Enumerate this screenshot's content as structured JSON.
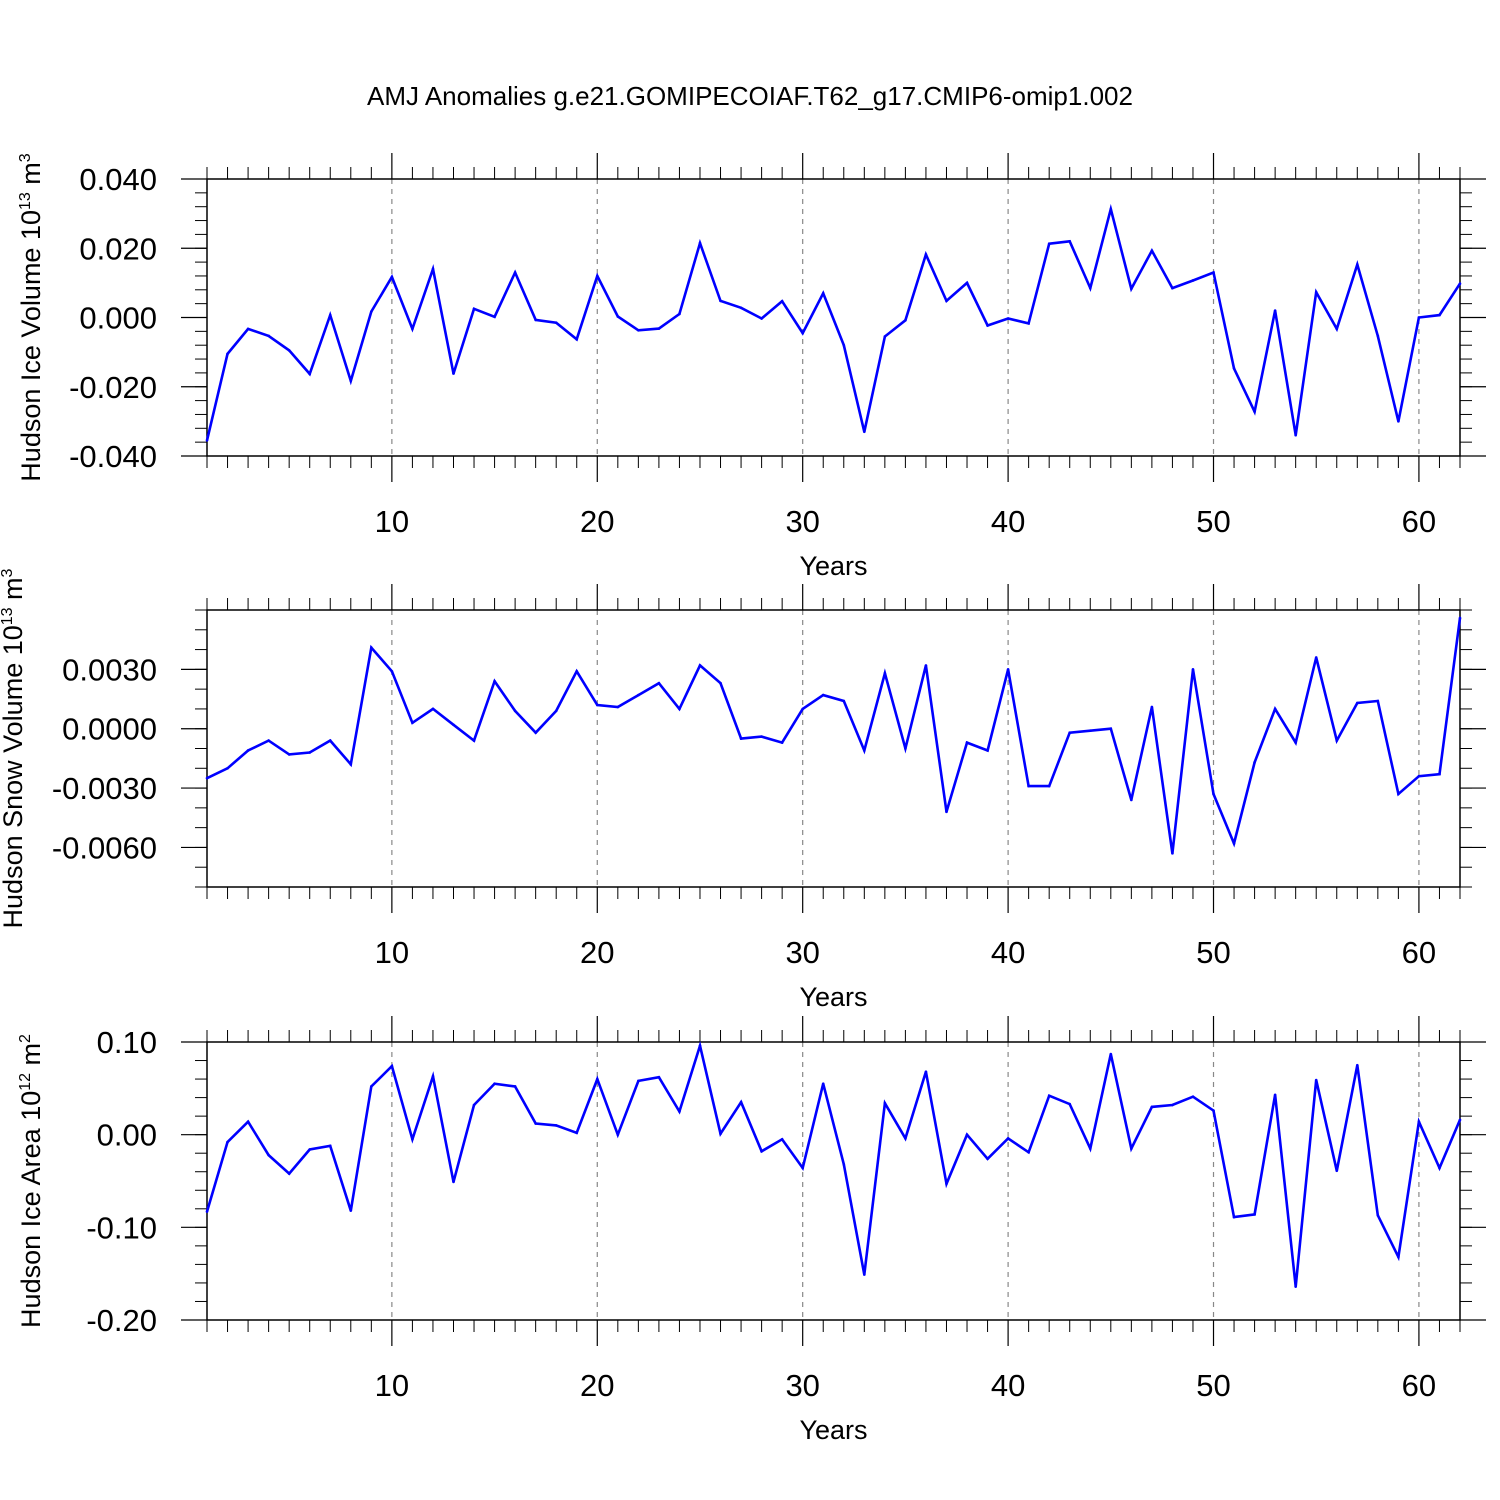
{
  "title": "AMJ Anomalies g.e21.GOMIPECOIAF.T62_g17.CMIP6-omip1.002",
  "colors": {
    "line": "#0000ff",
    "axis": "#000000",
    "grid": "#888888"
  },
  "chart_data": [
    {
      "type": "line",
      "ylabel": "Hudson Ice Volume 10",
      "ylabel_exp": "13",
      "ylabel_unit": " m",
      "ylabel_unit_exp": "3",
      "xlabel": "Years",
      "xlim": [
        1,
        62
      ],
      "ylim": [
        -0.04,
        0.04
      ],
      "x_ticks": [
        10,
        20,
        30,
        40,
        50,
        60
      ],
      "x_tick_labels": [
        "10",
        "20",
        "30",
        "40",
        "50",
        "60"
      ],
      "y_ticks": [
        -0.04,
        -0.02,
        0.0,
        0.02,
        0.04
      ],
      "y_tick_labels": [
        "-0.040",
        "-0.020",
        "0.000",
        "0.020",
        "0.040"
      ],
      "y_minor_step": 0.004,
      "x": [
        1,
        2,
        3,
        4,
        5,
        6,
        7,
        8,
        9,
        10,
        11,
        12,
        13,
        14,
        15,
        16,
        17,
        18,
        19,
        20,
        21,
        22,
        23,
        24,
        25,
        26,
        27,
        28,
        29,
        30,
        31,
        32,
        33,
        34,
        35,
        36,
        37,
        38,
        39,
        40,
        41,
        42,
        43,
        44,
        45,
        46,
        47,
        48,
        49,
        50,
        51,
        52,
        53,
        54,
        55,
        56,
        57,
        58,
        59,
        60,
        61,
        62
      ],
      "values": [
        -0.0355,
        -0.0105,
        -0.0033,
        -0.0053,
        -0.0095,
        -0.0163,
        0.0007,
        -0.0183,
        0.0017,
        0.0117,
        -0.0033,
        0.014,
        -0.0162,
        0.0025,
        0.0002,
        0.013,
        -0.0007,
        -0.0015,
        -0.0063,
        0.012,
        0.0003,
        -0.0037,
        -0.0032,
        0.001,
        0.0215,
        0.0048,
        0.0028,
        -0.0003,
        0.0047,
        -0.0045,
        0.007,
        -0.008,
        -0.033,
        -0.0055,
        -0.0008,
        0.0182,
        0.0048,
        0.01,
        -0.0023,
        -0.0003,
        -0.0017,
        0.0213,
        0.022,
        0.0085,
        0.0313,
        0.0083,
        0.0193,
        0.0085,
        0.0107,
        0.013,
        -0.0147,
        -0.0272,
        0.002,
        -0.034,
        0.0073,
        -0.0033,
        0.0153,
        -0.0053,
        -0.03,
        0.0,
        0.0007,
        0.0098
      ]
    },
    {
      "type": "line",
      "ylabel": "Hudson Snow Volume 10",
      "ylabel_exp": "13",
      "ylabel_unit": " m",
      "ylabel_unit_exp": "3",
      "xlabel": "Years",
      "xlim": [
        1,
        62
      ],
      "ylim": [
        -0.008,
        0.006
      ],
      "x_ticks": [
        10,
        20,
        30,
        40,
        50,
        60
      ],
      "x_tick_labels": [
        "10",
        "20",
        "30",
        "40",
        "50",
        "60"
      ],
      "y_ticks": [
        -0.006,
        -0.003,
        0.0,
        0.003
      ],
      "y_tick_labels": [
        "-0.0060",
        "-0.0030",
        "0.0000",
        "0.0030"
      ],
      "y_minor_step": 0.001,
      "x": [
        1,
        2,
        3,
        4,
        5,
        6,
        7,
        8,
        9,
        10,
        11,
        12,
        13,
        14,
        15,
        16,
        17,
        18,
        19,
        20,
        21,
        22,
        23,
        24,
        25,
        26,
        27,
        28,
        29,
        30,
        31,
        32,
        33,
        34,
        35,
        36,
        37,
        38,
        39,
        40,
        41,
        42,
        43,
        44,
        45,
        46,
        47,
        48,
        49,
        50,
        51,
        52,
        53,
        54,
        55,
        56,
        57,
        58,
        59,
        60,
        61,
        62
      ],
      "values": [
        -0.0025,
        -0.002,
        -0.0011,
        -0.0006,
        -0.0013,
        -0.0012,
        -0.0006,
        -0.0018,
        0.0041,
        0.0029,
        0.0003,
        0.001,
        0.0002,
        -0.0006,
        0.0024,
        0.0009,
        -0.0002,
        0.0009,
        0.0029,
        0.0012,
        0.0011,
        0.0017,
        0.0023,
        0.001,
        0.0032,
        0.0023,
        -0.0005,
        -0.0004,
        -0.0007,
        0.001,
        0.0017,
        0.0014,
        -0.0011,
        0.0028,
        -0.001,
        0.0032,
        -0.0042,
        -0.0007,
        -0.0011,
        0.003,
        -0.0029,
        -0.0029,
        -0.0002,
        -0.0001,
        0.0,
        -0.0036,
        0.0011,
        -0.0063,
        0.003,
        -0.0033,
        -0.0058,
        -0.0017,
        0.001,
        -0.0007,
        0.0036,
        -0.0006,
        0.0013,
        0.0014,
        -0.0033,
        -0.0024,
        -0.0023,
        0.0056
      ]
    },
    {
      "type": "line",
      "ylabel": "Hudson Ice Area 10",
      "ylabel_exp": "12",
      "ylabel_unit": " m",
      "ylabel_unit_exp": "2",
      "xlabel": "Years",
      "xlim": [
        1,
        62
      ],
      "ylim": [
        -0.2,
        0.1
      ],
      "x_ticks": [
        10,
        20,
        30,
        40,
        50,
        60
      ],
      "x_tick_labels": [
        "10",
        "20",
        "30",
        "40",
        "50",
        "60"
      ],
      "y_ticks": [
        -0.2,
        -0.1,
        0.0,
        0.1
      ],
      "y_tick_labels": [
        "-0.20",
        "-0.10",
        "0.00",
        "0.10"
      ],
      "y_minor_step": 0.02,
      "x": [
        1,
        2,
        3,
        4,
        5,
        6,
        7,
        8,
        9,
        10,
        11,
        12,
        13,
        14,
        15,
        16,
        17,
        18,
        19,
        20,
        21,
        22,
        23,
        24,
        25,
        26,
        27,
        28,
        29,
        30,
        31,
        32,
        33,
        34,
        35,
        36,
        37,
        38,
        39,
        40,
        41,
        42,
        43,
        44,
        45,
        46,
        47,
        48,
        49,
        50,
        51,
        52,
        53,
        54,
        55,
        56,
        57,
        58,
        59,
        60,
        61,
        62
      ],
      "values": [
        -0.083,
        -0.008,
        0.014,
        -0.022,
        -0.042,
        -0.016,
        -0.012,
        -0.082,
        0.052,
        0.074,
        -0.005,
        0.063,
        -0.051,
        0.032,
        0.055,
        0.052,
        0.012,
        0.01,
        0.002,
        0.06,
        0.0,
        0.058,
        0.062,
        0.025,
        0.096,
        0.001,
        0.035,
        -0.018,
        -0.005,
        -0.036,
        0.055,
        -0.032,
        -0.151,
        0.034,
        -0.004,
        0.068,
        -0.053,
        0.0,
        -0.026,
        -0.004,
        -0.019,
        0.042,
        0.033,
        -0.015,
        0.087,
        -0.015,
        0.03,
        0.032,
        0.041,
        0.026,
        -0.089,
        -0.086,
        0.043,
        -0.164,
        0.059,
        -0.039,
        0.075,
        -0.087,
        -0.132,
        0.014,
        -0.036,
        0.016
      ]
    }
  ]
}
